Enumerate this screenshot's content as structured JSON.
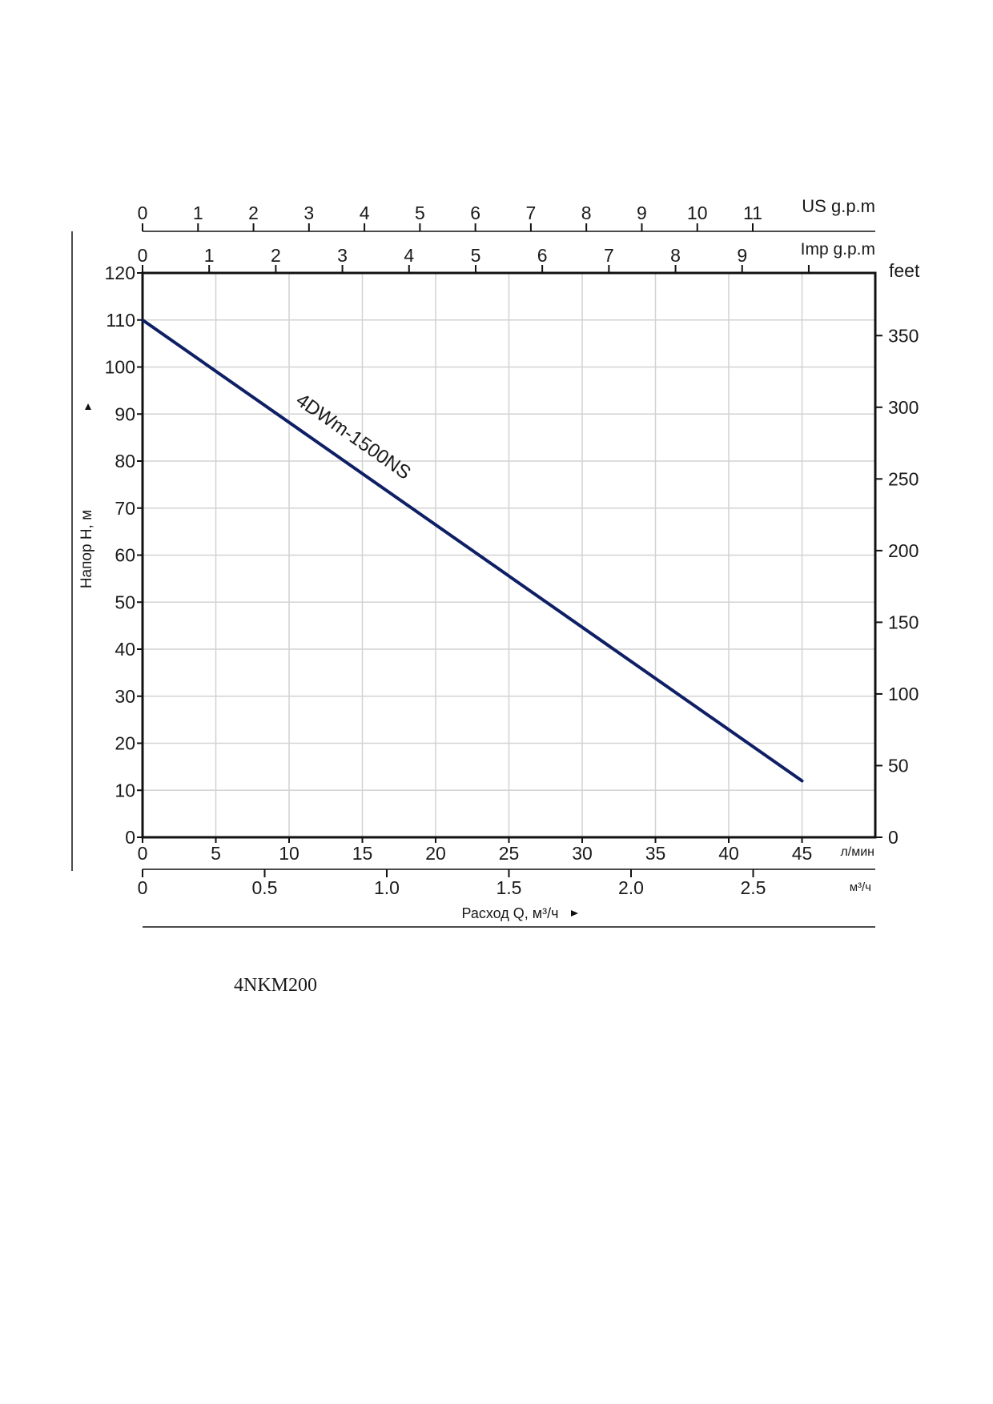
{
  "chart_data": {
    "type": "line",
    "series": [
      {
        "name": "4DWm-1500NS",
        "x": [
          0,
          45
        ],
        "y": [
          110,
          12
        ],
        "color": "#0f1f66"
      }
    ],
    "xlim": [
      0,
      50
    ],
    "ylim": [
      0,
      120
    ],
    "grid": true,
    "y_left": {
      "label": "Напор H, м",
      "ticks": [
        0,
        10,
        20,
        30,
        40,
        50,
        60,
        70,
        80,
        90,
        100,
        110,
        120
      ],
      "tick_labels": [
        "0",
        "10",
        "20",
        "30",
        "40",
        "50",
        "60",
        "70",
        "80",
        "90",
        "100",
        "110",
        "120"
      ]
    },
    "y_right": {
      "unit": "feet",
      "ticks": [
        0,
        50,
        100,
        150,
        200,
        250,
        300,
        350
      ],
      "tick_labels": [
        "0",
        "50",
        "100",
        "150",
        "200",
        "250",
        "300",
        "350"
      ]
    },
    "x_lpm": {
      "unit": "л/мин",
      "ticks": [
        0,
        5,
        10,
        15,
        20,
        25,
        30,
        35,
        40,
        45
      ],
      "tick_labels": [
        "0",
        "5",
        "10",
        "15",
        "20",
        "25",
        "30",
        "35",
        "40",
        "45"
      ]
    },
    "x_m3h": {
      "unit": "м³/ч",
      "label": "Расход Q, м³/ч",
      "ticks": [
        0,
        0.5,
        1.0,
        1.5,
        2.0,
        2.5
      ],
      "tick_labels": [
        "0",
        "0.5",
        "1.0",
        "1.5",
        "2.0",
        "2.5"
      ]
    },
    "x_us_gpm": {
      "unit": "US g.p.m",
      "ticks": [
        0,
        1,
        2,
        3,
        4,
        5,
        6,
        7,
        8,
        9,
        10,
        11
      ],
      "tick_labels": [
        "0",
        "1",
        "2",
        "3",
        "4",
        "5",
        "6",
        "7",
        "8",
        "9",
        "10",
        "11"
      ]
    },
    "x_imp_gpm": {
      "unit": "Imp g.p.m",
      "ticks": [
        0,
        1,
        2,
        3,
        4,
        5,
        6,
        7,
        8,
        9,
        10
      ],
      "tick_labels": [
        "0",
        "1",
        "2",
        "3",
        "4",
        "5",
        "6",
        "7",
        "8",
        "9",
        ""
      ]
    }
  },
  "caption": "4NKM200"
}
